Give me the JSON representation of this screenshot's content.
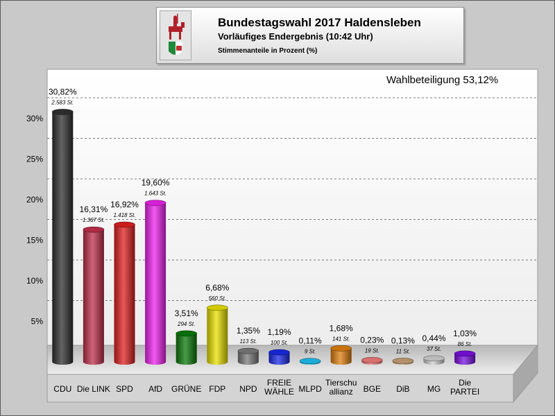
{
  "header": {
    "title": "Bundestagswahl 2017 Haldensleben",
    "subtitle": "Vorläufiges Endergebnis (10:42 Uhr)",
    "subtitle2": "Stimmenanteile in Prozent (%)"
  },
  "turnout": "Wahlbeteiligung 53,12%",
  "chart_data": {
    "type": "bar",
    "title": "Bundestagswahl 2017 Haldensleben",
    "ylim": [
      0,
      35
    ],
    "yticks": [
      {
        "v": 5,
        "label": "5%"
      },
      {
        "v": 10,
        "label": "10%"
      },
      {
        "v": 15,
        "label": "15%"
      },
      {
        "v": 20,
        "label": "20%"
      },
      {
        "v": 25,
        "label": "25%"
      },
      {
        "v": 30,
        "label": "30%"
      }
    ],
    "grid": true,
    "categories": [
      {
        "label": [
          "CDU"
        ],
        "value": 30.82,
        "pct": "30,82%",
        "votes": "2.583 St.",
        "color": "#303030"
      },
      {
        "label": [
          "Die LINK"
        ],
        "value": 16.31,
        "pct": "16,31%",
        "votes": "1.367 St.",
        "color": "#c0304c"
      },
      {
        "label": [
          "SPD"
        ],
        "value": 16.92,
        "pct": "16,92%",
        "votes": "1.418 St.",
        "color": "#e02020"
      },
      {
        "label": [
          "AfD"
        ],
        "value": 19.6,
        "pct": "19,60%",
        "votes": "1.643 St.",
        "color": "#ee22ee"
      },
      {
        "label": [
          "GRÜNE"
        ],
        "value": 3.51,
        "pct": "3,51%",
        "votes": "294 St.",
        "color": "#0a7a0a"
      },
      {
        "label": [
          "FDP"
        ],
        "value": 6.68,
        "pct": "6,68%",
        "votes": "560 St.",
        "color": "#e8e000"
      },
      {
        "label": [
          "NPD"
        ],
        "value": 1.35,
        "pct": "1,35%",
        "votes": "113 St.",
        "color": "#7a7a7a"
      },
      {
        "label": [
          "FREIE",
          "WÄHLE"
        ],
        "value": 1.19,
        "pct": "1,19%",
        "votes": "100 St.",
        "color": "#1a2ae8"
      },
      {
        "label": [
          "MLPD"
        ],
        "value": 0.11,
        "pct": "0,11%",
        "votes": "9 St.",
        "color": "#1ec0f0"
      },
      {
        "label": [
          "Tierschu",
          "allianz"
        ],
        "value": 1.68,
        "pct": "1,68%",
        "votes": "141 St.",
        "color": "#e08010"
      },
      {
        "label": [
          "BGE"
        ],
        "value": 0.23,
        "pct": "0,23%",
        "votes": "19 St.",
        "color": "#f07a7a"
      },
      {
        "label": [
          "DiB"
        ],
        "value": 0.13,
        "pct": "0,13%",
        "votes": "11 St.",
        "color": "#c8a078"
      },
      {
        "label": [
          "MG"
        ],
        "value": 0.44,
        "pct": "0,44%",
        "votes": "37 St.",
        "color": "#d0d0d0"
      },
      {
        "label": [
          "Die",
          "PARTEI"
        ],
        "value": 1.03,
        "pct": "1,03%",
        "votes": "86 St.",
        "color": "#7a10e0"
      }
    ]
  }
}
